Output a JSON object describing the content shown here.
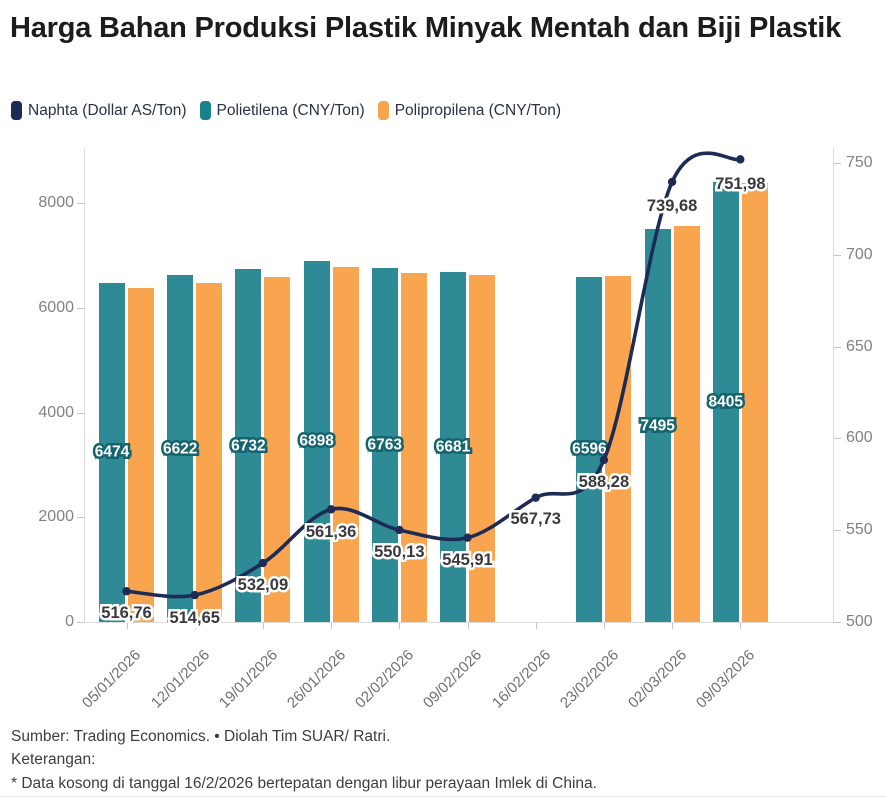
{
  "title": "Harga Bahan Produksi Plastik Minyak Mentah dan Biji Plastik",
  "legend": [
    {
      "label": "Naphta (Dollar AS/Ton)",
      "color": "#1d2b55"
    },
    {
      "label": "Polietilena (CNY/Ton)",
      "color": "#17818c"
    },
    {
      "label": "Polipropilena (CNY/Ton)",
      "color": "#f9a44e"
    }
  ],
  "chart_data": {
    "type": "bar",
    "subtype": "grouped-bars-with-line",
    "categories": [
      "05/01/2026",
      "12/01/2026",
      "19/01/2026",
      "26/01/2026",
      "02/02/2026",
      "09/02/2026",
      "16/02/2026",
      "23/02/2026",
      "02/03/2026",
      "09/03/2026"
    ],
    "series": [
      {
        "name": "Naphta (Dollar AS/Ton)",
        "type": "line",
        "axis": "right",
        "color": "#1d2b55",
        "values": [
          516.76,
          514.65,
          532.09,
          561.36,
          550.13,
          545.91,
          567.73,
          588.28,
          739.68,
          751.98
        ],
        "value_labels": [
          "516,76",
          "514,65",
          "532,09",
          "561,36",
          "550,13",
          "545,91",
          "567,73",
          "588,28",
          "739,68",
          "751,98"
        ]
      },
      {
        "name": "Polietilena (CNY/Ton)",
        "type": "bar",
        "axis": "left",
        "color": "#2e8b95",
        "values": [
          6474,
          6622,
          6732,
          6898,
          6763,
          6681,
          null,
          6596,
          7495,
          8405
        ],
        "value_labels": [
          "6474",
          "6622",
          "6732",
          "6898",
          "6763",
          "6681",
          null,
          "6596",
          "7495",
          "8405"
        ]
      },
      {
        "name": "Polipropilena (CNY/Ton)",
        "type": "bar",
        "axis": "left",
        "color": "#f9a44e",
        "values": [
          6380,
          6480,
          6590,
          6780,
          6670,
          6620,
          null,
          6610,
          7560,
          8390
        ],
        "value_labels": [
          null,
          null,
          null,
          null,
          null,
          null,
          null,
          null,
          null,
          null
        ],
        "estimated": true
      }
    ],
    "left_axis": {
      "ticks": [
        0,
        2000,
        4000,
        6000,
        8000
      ],
      "range": [
        0,
        8860
      ]
    },
    "right_axis": {
      "ticks": [
        500,
        550,
        600,
        650,
        700,
        750
      ],
      "range": [
        500,
        758
      ]
    },
    "grid": false,
    "legend_position": "top",
    "missing_data_category": "16/02/2026"
  },
  "footer": {
    "source": "Sumber: Trading Economics. • Diolah Tim SUAR/ Ratri.",
    "note_title": "Keterangan:",
    "note": "* Data kosong di tanggal 16/2/2026 bertepatan dengan libur perayaan Imlek di China."
  }
}
